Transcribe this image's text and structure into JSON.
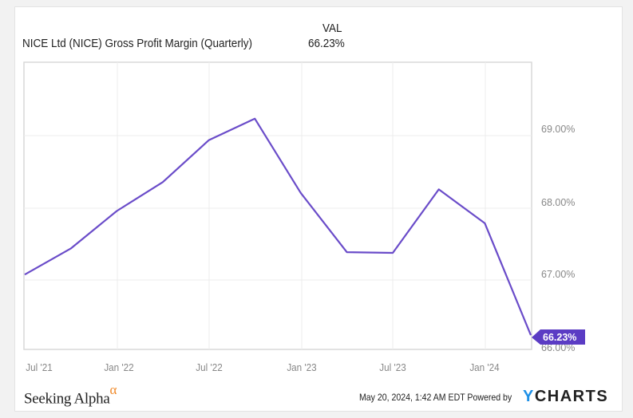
{
  "chart": {
    "title": "NICE Ltd (NICE) Gross Profit Margin (Quarterly)",
    "value_header": "VAL",
    "value": "66.23%",
    "last_label": "66.23%",
    "line_color": "#6a4cc9",
    "label_color": "#5b3cc4"
  },
  "footer": {
    "brand": "Seeking Alpha",
    "brand_symbol": "α",
    "timestamp": "May 20, 2024, 1:42 AM EDT Powered by",
    "ycharts_y": "Y",
    "ycharts_rest": "CHARTS"
  },
  "x_ticks": [
    "Jul '21",
    "Jan '22",
    "Jul '22",
    "Jan '23",
    "Jul '23",
    "Jan '24"
  ],
  "y_ticks": [
    "69.00%",
    "68.00%",
    "67.00%",
    "66.00%"
  ],
  "chart_data": {
    "type": "line",
    "title": "NICE Ltd (NICE) Gross Profit Margin (Quarterly)",
    "xlabel": "",
    "ylabel": "",
    "x": [
      "Jun 2021",
      "Sep 2021",
      "Dec 2021",
      "Mar 2022",
      "Jun 2022",
      "Sep 2022",
      "Dec 2022",
      "Mar 2023",
      "Jun 2023",
      "Sep 2023",
      "Dec 2023",
      "Mar 2024"
    ],
    "series": [
      {
        "name": "NICE Ltd (NICE) Gross Profit Margin (Quarterly)",
        "values": [
          67.07,
          67.43,
          67.95,
          68.35,
          68.93,
          69.23,
          68.2,
          67.38,
          67.37,
          68.25,
          67.78,
          66.23
        ]
      }
    ],
    "x_tick_labels": [
      "Jul '21",
      "Jan '22",
      "Jul '22",
      "Jan '23",
      "Jul '23",
      "Jan '24"
    ],
    "y_tick_labels": [
      "66.00%",
      "67.00%",
      "68.00%",
      "69.00%"
    ],
    "ylim": [
      66.0,
      69.8
    ],
    "grid": true,
    "y_axis_position": "right",
    "annotations": [
      "66.23%"
    ]
  }
}
